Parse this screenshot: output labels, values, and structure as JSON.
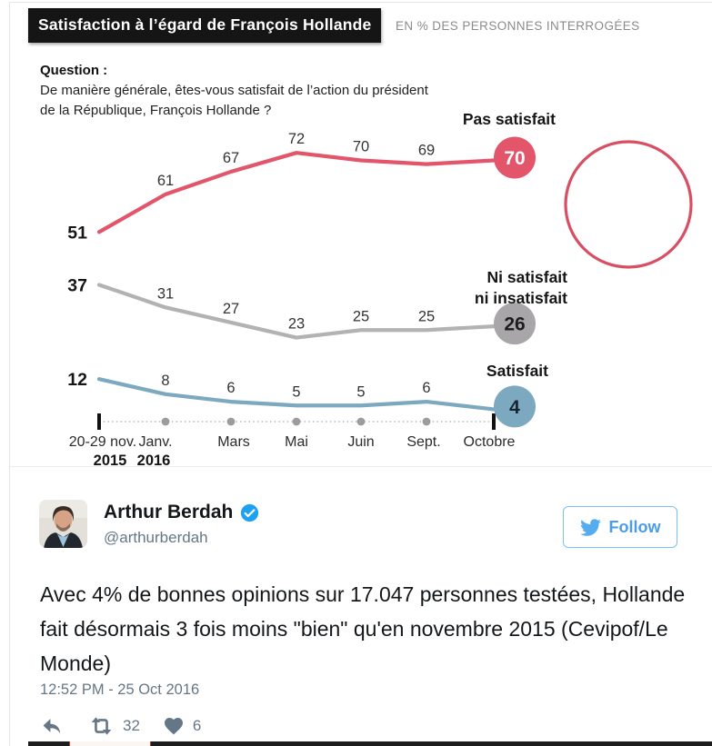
{
  "infographic": {
    "title": "Satisfaction à l’égard de François Hollande",
    "subtitle": "EN % DES PERSONNES INTERROGÉES",
    "question_label": "Question :",
    "question_line1": "De manière générale, êtes-vous satisfait  de l’action du président",
    "question_line2": "de la République, François Hollande ?"
  },
  "chart_data": {
    "type": "line",
    "title": "Satisfaction à l’égard de François Hollande",
    "subtitle": "EN % DES PERSONNES INTERROGÉES",
    "xlabel": "",
    "ylabel": "% des personnes interrogées",
    "ylim": [
      0,
      80
    ],
    "grid": false,
    "legend_position": "inline-right",
    "categories": [
      {
        "label": "20-29 nov.",
        "year": "2015"
      },
      {
        "label": "Janv.",
        "year": "2016"
      },
      {
        "label": "Mars",
        "year": ""
      },
      {
        "label": "Mai",
        "year": ""
      },
      {
        "label": "Juin",
        "year": ""
      },
      {
        "label": "Sept.",
        "year": ""
      },
      {
        "label": "Octobre",
        "year": ""
      }
    ],
    "series": [
      {
        "name": "Pas satisfait",
        "label_lines": [
          "Pas satisfait"
        ],
        "values": [
          51,
          61,
          67,
          72,
          70,
          69,
          70
        ],
        "color": "#e2556a",
        "end_circle_color": "#e2556a",
        "end_value": 70,
        "end_text_color": "#ffffff"
      },
      {
        "name": "Ni satisfait ni insatisfait",
        "label_lines": [
          "Ni satisfait",
          "ni insatisfait"
        ],
        "values": [
          37,
          31,
          27,
          23,
          25,
          25,
          26
        ],
        "color": "#b3b1b3",
        "end_circle_color": "#a8a6a8",
        "end_value": 26,
        "end_text_color": "#1d1d1d"
      },
      {
        "name": "Satisfait",
        "label_lines": [
          "Satisfait"
        ],
        "values": [
          12,
          8,
          6,
          5,
          5,
          6,
          4
        ],
        "color": "#7ca8c0",
        "end_circle_color": "#7ca8c0",
        "end_value": 4,
        "end_text_color": "#16262e"
      }
    ],
    "portrait_ring": "#d84f63",
    "portrait_ink": "#3b3f6b"
  },
  "tweet": {
    "display_name": "Arthur Berdah",
    "handle": "@arthurberdah",
    "follow_label": "Follow",
    "text": "Avec 4% de bonnes opinions sur 17.047 personnes testées, Hollande fait désormais 3 fois moins \"bien\" qu'en novembre 2015 (Cevipof/Le Monde)",
    "timestamp": "12:52 PM - 25 Oct 2016",
    "retweet_count": "32",
    "like_count": "6"
  },
  "colors": {
    "twitter_blue": "#4a9ceb",
    "verified_blue": "#1da1f2",
    "icon_gray": "#657786",
    "accent_red": "#e2556a"
  }
}
